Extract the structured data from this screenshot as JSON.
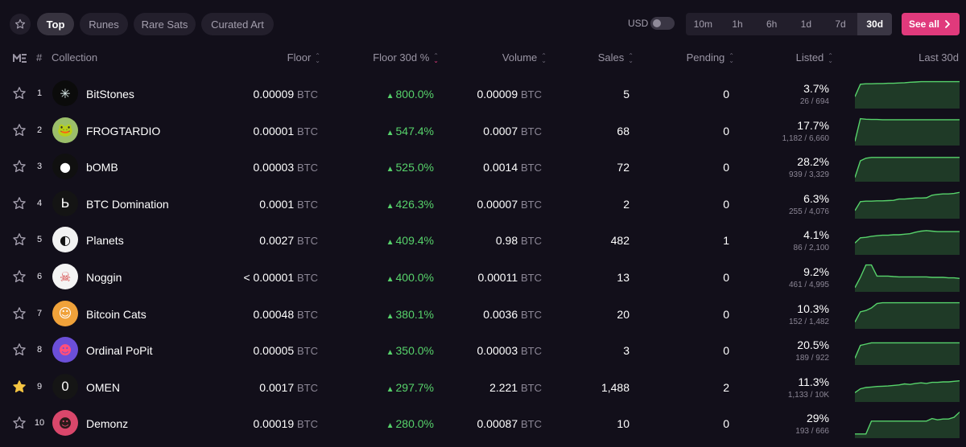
{
  "filters": {
    "tabs": [
      {
        "label": "Top",
        "active": true
      },
      {
        "label": "Runes",
        "active": false
      },
      {
        "label": "Rare Sats",
        "active": false
      },
      {
        "label": "Curated Art",
        "active": false
      }
    ],
    "currency_label": "USD",
    "timeframes": [
      "10m",
      "1h",
      "6h",
      "1d",
      "7d",
      "30d"
    ],
    "active_timeframe": "30d",
    "see_all_label": "See all"
  },
  "columns": {
    "rank": "#",
    "collection": "Collection",
    "floor": "Floor",
    "floor_change": "Floor 30d %",
    "volume": "Volume",
    "sales": "Sales",
    "pending": "Pending",
    "listed": "Listed",
    "chart": "Last 30d"
  },
  "colors": {
    "accent": "#e03a7c",
    "positive": "#57d36b",
    "favorite": "#f5c542"
  },
  "rows": [
    {
      "rank": "1",
      "name": "BitStones",
      "floor": "0.00009",
      "unit": "BTC",
      "change": "800.0%",
      "volume": "0.00009",
      "sales": "5",
      "pending": "0",
      "listed_pct": "3.7%",
      "listed_count": "26 / 694",
      "favorite": false,
      "trend": [
        0.4,
        0.88,
        0.9,
        0.9,
        0.91,
        0.91,
        0.92,
        0.92,
        0.93,
        0.94,
        0.96,
        0.97,
        0.98,
        0.98,
        0.98,
        0.98,
        0.98,
        0.98,
        0.98,
        0.98
      ]
    },
    {
      "rank": "2",
      "name": "FROGTARDIO",
      "floor": "0.00001",
      "unit": "BTC",
      "change": "547.4%",
      "volume": "0.0007",
      "sales": "68",
      "pending": "0",
      "listed_pct": "17.7%",
      "listed_count": "1,182 / 6,660",
      "favorite": false,
      "trend": [
        0.1,
        0.98,
        0.96,
        0.95,
        0.95,
        0.94,
        0.94,
        0.94,
        0.94,
        0.94,
        0.94,
        0.94,
        0.94,
        0.94,
        0.94,
        0.94,
        0.94,
        0.94,
        0.94,
        0.94
      ]
    },
    {
      "rank": "3",
      "name": "bOMB",
      "floor": "0.00003",
      "unit": "BTC",
      "change": "525.0%",
      "volume": "0.0014",
      "sales": "72",
      "pending": "0",
      "listed_pct": "28.2%",
      "listed_count": "939 / 3,329",
      "favorite": false,
      "trend": [
        0.1,
        0.75,
        0.85,
        0.88,
        0.88,
        0.88,
        0.88,
        0.88,
        0.88,
        0.88,
        0.88,
        0.88,
        0.88,
        0.88,
        0.88,
        0.88,
        0.88,
        0.88,
        0.88,
        0.88
      ]
    },
    {
      "rank": "4",
      "name": "BTC Domination",
      "floor": "0.0001",
      "unit": "BTC",
      "change": "426.3%",
      "volume": "0.00007",
      "sales": "2",
      "pending": "0",
      "listed_pct": "6.3%",
      "listed_count": "255 / 4,076",
      "favorite": false,
      "trend": [
        0.25,
        0.6,
        0.62,
        0.62,
        0.63,
        0.63,
        0.64,
        0.65,
        0.7,
        0.7,
        0.72,
        0.74,
        0.74,
        0.75,
        0.85,
        0.88,
        0.9,
        0.9,
        0.92,
        0.96
      ]
    },
    {
      "rank": "5",
      "name": "Planets",
      "floor": "0.0027",
      "unit": "BTC",
      "change": "409.4%",
      "volume": "0.98",
      "sales": "482",
      "pending": "1",
      "listed_pct": "4.1%",
      "listed_count": "86 / 2,100",
      "favorite": false,
      "trend": [
        0.4,
        0.6,
        0.62,
        0.66,
        0.68,
        0.7,
        0.7,
        0.72,
        0.72,
        0.74,
        0.76,
        0.82,
        0.86,
        0.88,
        0.86,
        0.84,
        0.84,
        0.84,
        0.84,
        0.84
      ]
    },
    {
      "rank": "6",
      "name": "Noggin",
      "floor": "< 0.00001",
      "unit": "BTC",
      "change": "400.0%",
      "volume": "0.00011",
      "sales": "13",
      "pending": "0",
      "listed_pct": "9.2%",
      "listed_count": "461 / 4,995",
      "favorite": false,
      "trend": [
        0.1,
        0.5,
        0.98,
        0.98,
        0.55,
        0.55,
        0.55,
        0.53,
        0.52,
        0.52,
        0.52,
        0.52,
        0.52,
        0.52,
        0.5,
        0.5,
        0.5,
        0.48,
        0.48,
        0.46
      ]
    },
    {
      "rank": "7",
      "name": "Bitcoin Cats",
      "floor": "0.00048",
      "unit": "BTC",
      "change": "380.1%",
      "volume": "0.0036",
      "sales": "20",
      "pending": "0",
      "listed_pct": "10.3%",
      "listed_count": "152 / 1,482",
      "favorite": false,
      "trend": [
        0.2,
        0.6,
        0.65,
        0.75,
        0.92,
        0.95,
        0.95,
        0.95,
        0.95,
        0.95,
        0.95,
        0.95,
        0.95,
        0.95,
        0.95,
        0.95,
        0.95,
        0.95,
        0.95,
        0.95
      ]
    },
    {
      "rank": "8",
      "name": "Ordinal PoPit",
      "floor": "0.00005",
      "unit": "BTC",
      "change": "350.0%",
      "volume": "0.00003",
      "sales": "3",
      "pending": "0",
      "listed_pct": "20.5%",
      "listed_count": "189 / 922",
      "favorite": false,
      "trend": [
        0.2,
        0.7,
        0.75,
        0.8,
        0.8,
        0.8,
        0.8,
        0.8,
        0.8,
        0.8,
        0.8,
        0.8,
        0.8,
        0.8,
        0.8,
        0.8,
        0.8,
        0.8,
        0.8,
        0.8
      ]
    },
    {
      "rank": "9",
      "name": "OMEN",
      "floor": "0.0017",
      "unit": "BTC",
      "change": "297.7%",
      "volume": "2.221",
      "sales": "1,488",
      "pending": "2",
      "listed_pct": "11.3%",
      "listed_count": "1,133 / 10K",
      "favorite": true,
      "trend": [
        0.3,
        0.45,
        0.5,
        0.52,
        0.54,
        0.55,
        0.56,
        0.58,
        0.6,
        0.64,
        0.62,
        0.66,
        0.68,
        0.66,
        0.7,
        0.7,
        0.72,
        0.72,
        0.74,
        0.76
      ]
    },
    {
      "rank": "10",
      "name": "Demonz",
      "floor": "0.00019",
      "unit": "BTC",
      "change": "280.0%",
      "volume": "0.00087",
      "sales": "10",
      "pending": "0",
      "listed_pct": "29%",
      "listed_count": "193 / 666",
      "favorite": false,
      "trend": [
        0.1,
        0.1,
        0.1,
        0.6,
        0.6,
        0.6,
        0.6,
        0.6,
        0.6,
        0.6,
        0.6,
        0.6,
        0.6,
        0.6,
        0.7,
        0.65,
        0.68,
        0.68,
        0.75,
        0.95
      ]
    }
  ]
}
